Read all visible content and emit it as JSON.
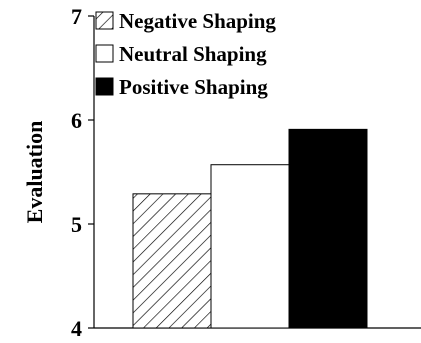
{
  "chart_data": {
    "type": "bar",
    "categories": [
      "Negative Shaping",
      "Neutral Shaping",
      "Positive Shaping"
    ],
    "values": [
      5.29,
      5.57,
      5.91
    ],
    "ylabel": "Evaluation",
    "xlabel": "",
    "ylim": [
      4,
      7
    ],
    "yticks": [
      "4",
      "5",
      "6",
      "7"
    ],
    "legend": [
      "Negative Shaping",
      "Neutral Shaping",
      "Positive Shaping"
    ],
    "legend_position": "top-left",
    "fills": [
      "hatched",
      "#ffffff",
      "#000000"
    ],
    "grid": false
  }
}
